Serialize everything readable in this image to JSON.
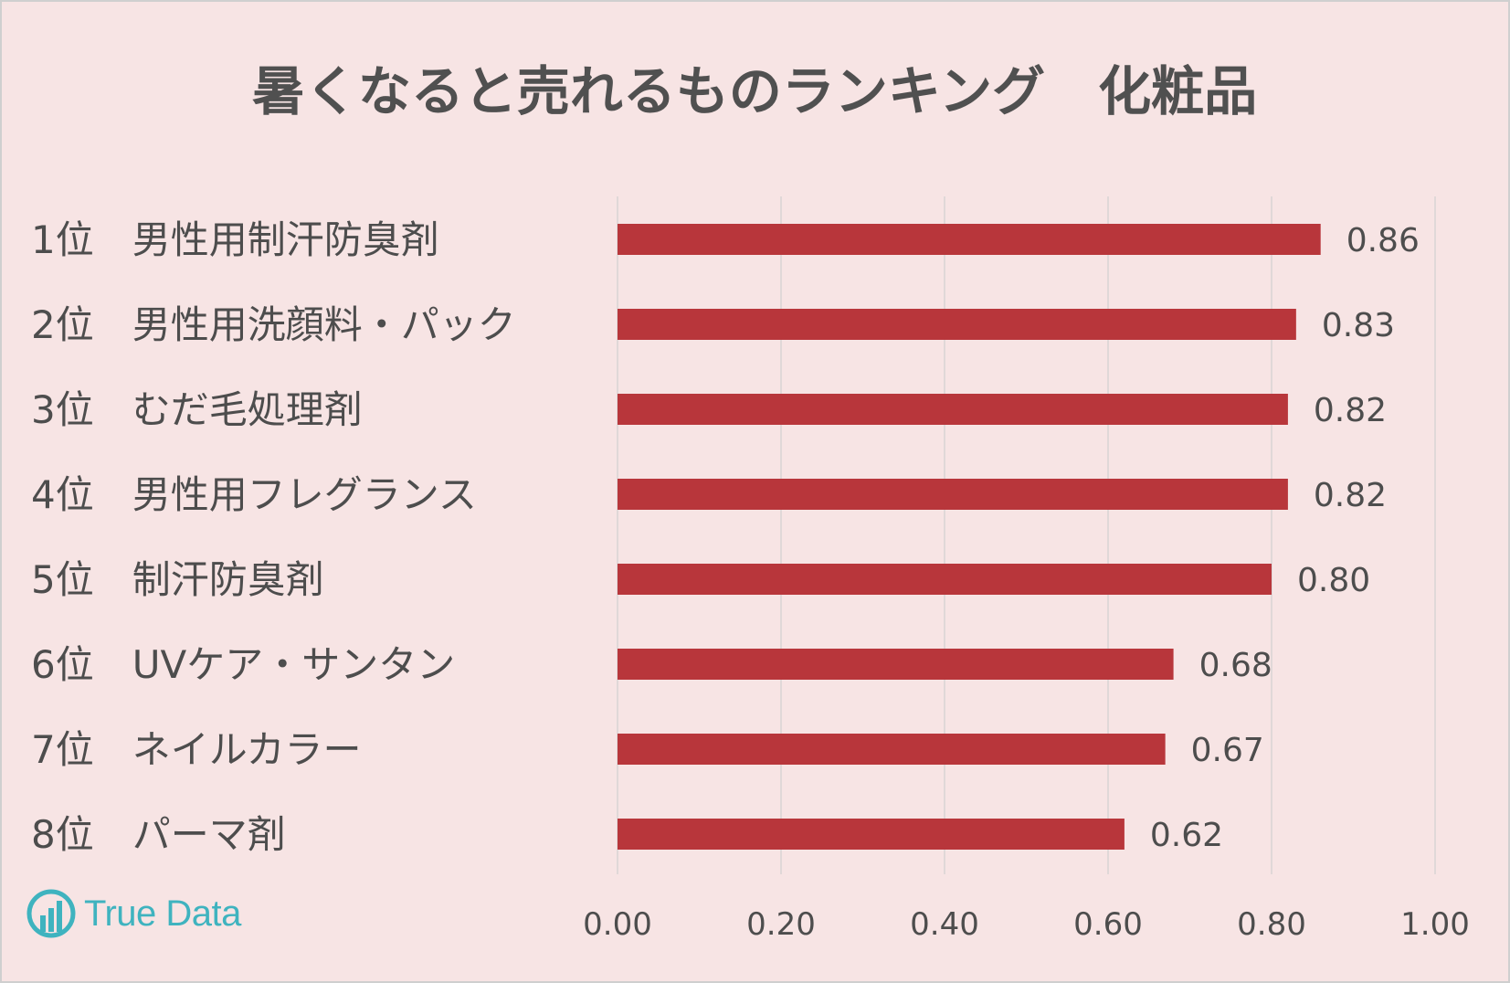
{
  "chart_data": {
    "type": "bar",
    "orientation": "horizontal",
    "title": "暑くなると売れるものランキング　化粧品",
    "categories": [
      "1位　男性用制汗防臭剤",
      "2位　男性用洗顔料・パック",
      "3位　むだ毛処理剤",
      "4位　男性用フレグランス",
      "5位　制汗防臭剤",
      "6位　UVケア・サンタン",
      "7位　ネイルカラー",
      "8位　パーマ剤"
    ],
    "values": [
      0.86,
      0.83,
      0.82,
      0.82,
      0.8,
      0.68,
      0.67,
      0.62
    ],
    "data_labels": [
      "0.86",
      "0.83",
      "0.82",
      "0.82",
      "0.80",
      "0.68",
      "0.67",
      "0.62"
    ],
    "x_ticks": [
      0.0,
      0.2,
      0.4,
      0.6,
      0.8,
      1.0
    ],
    "x_tick_labels": [
      "0.00",
      "0.20",
      "0.40",
      "0.60",
      "0.80",
      "1.00"
    ],
    "xlim": [
      0,
      1.0
    ],
    "xlabel": "",
    "ylabel": "",
    "grid": "vertical",
    "legend": "none",
    "bar_color": "#b8363b",
    "background_color": "#f7e4e4",
    "gridline_color": "#d9d4d4",
    "text_color": "#4d4d4d",
    "title_color": "#505050"
  },
  "logo": {
    "text": "True Data",
    "color": "#3fb3bf",
    "icon": "truedata-logo-icon"
  }
}
